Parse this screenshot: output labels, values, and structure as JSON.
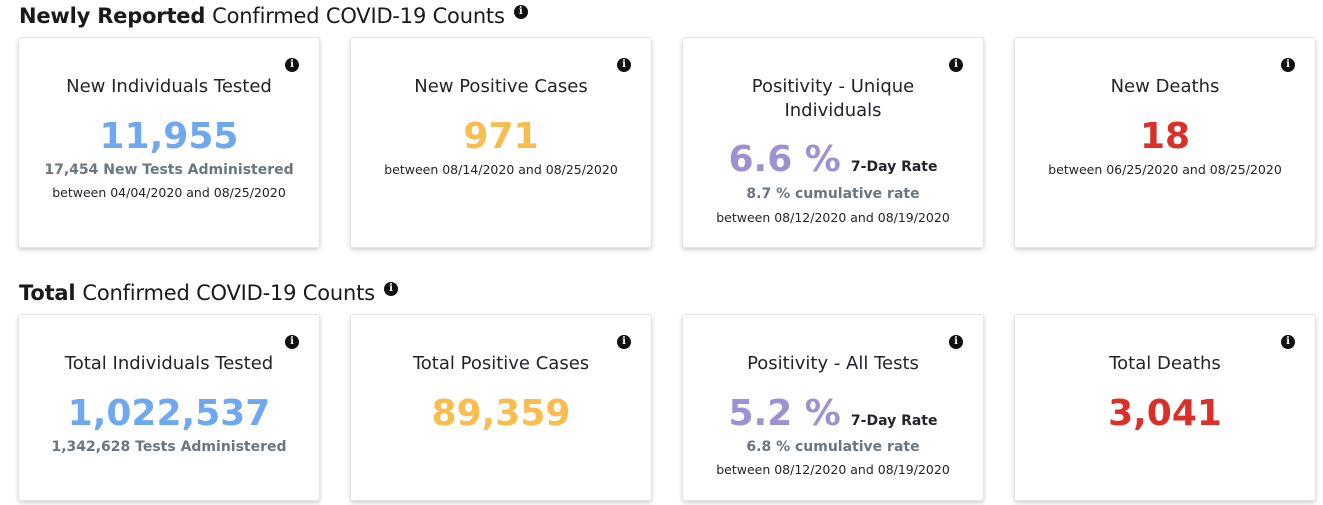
{
  "colors": {
    "blue": "#6fa8ee",
    "orange": "#f8bc4f",
    "purple": "#9e91d0",
    "red": "#d9312a"
  },
  "sections": {
    "newly": {
      "strong": "Newly Reported",
      "rest": "Confirmed COVID-19 Counts",
      "icon": "info-icon"
    },
    "total": {
      "strong": "Total",
      "rest": "Confirmed COVID-19 Counts",
      "icon": "info-icon"
    }
  },
  "newly_cards": {
    "tested": {
      "title": "New Individuals Tested",
      "value": "11,955",
      "sub": "17,454 New Tests Administered",
      "range": "between 04/04/2020 and 08/25/2020"
    },
    "positive": {
      "title": "New Positive Cases",
      "value": "971",
      "range": "between 08/14/2020 and 08/25/2020"
    },
    "positivity": {
      "title": "Positivity - Unique Individuals",
      "value": "6.6 %",
      "tag": "7-Day Rate",
      "sub": "8.7 % cumulative rate",
      "range": "between 08/12/2020 and 08/19/2020"
    },
    "deaths": {
      "title": "New Deaths",
      "value": "18",
      "range": "between 06/25/2020 and 08/25/2020"
    }
  },
  "total_cards": {
    "tested": {
      "title": "Total Individuals Tested",
      "value": "1,022,537",
      "sub": "1,342,628 Tests Administered"
    },
    "positive": {
      "title": "Total Positive Cases",
      "value": "89,359"
    },
    "positivity": {
      "title": "Positivity - All Tests",
      "value": "5.2 %",
      "tag": "7-Day Rate",
      "sub": "6.8 % cumulative rate",
      "range": "between 08/12/2020 and 08/19/2020"
    },
    "deaths": {
      "title": "Total Deaths",
      "value": "3,041"
    }
  }
}
